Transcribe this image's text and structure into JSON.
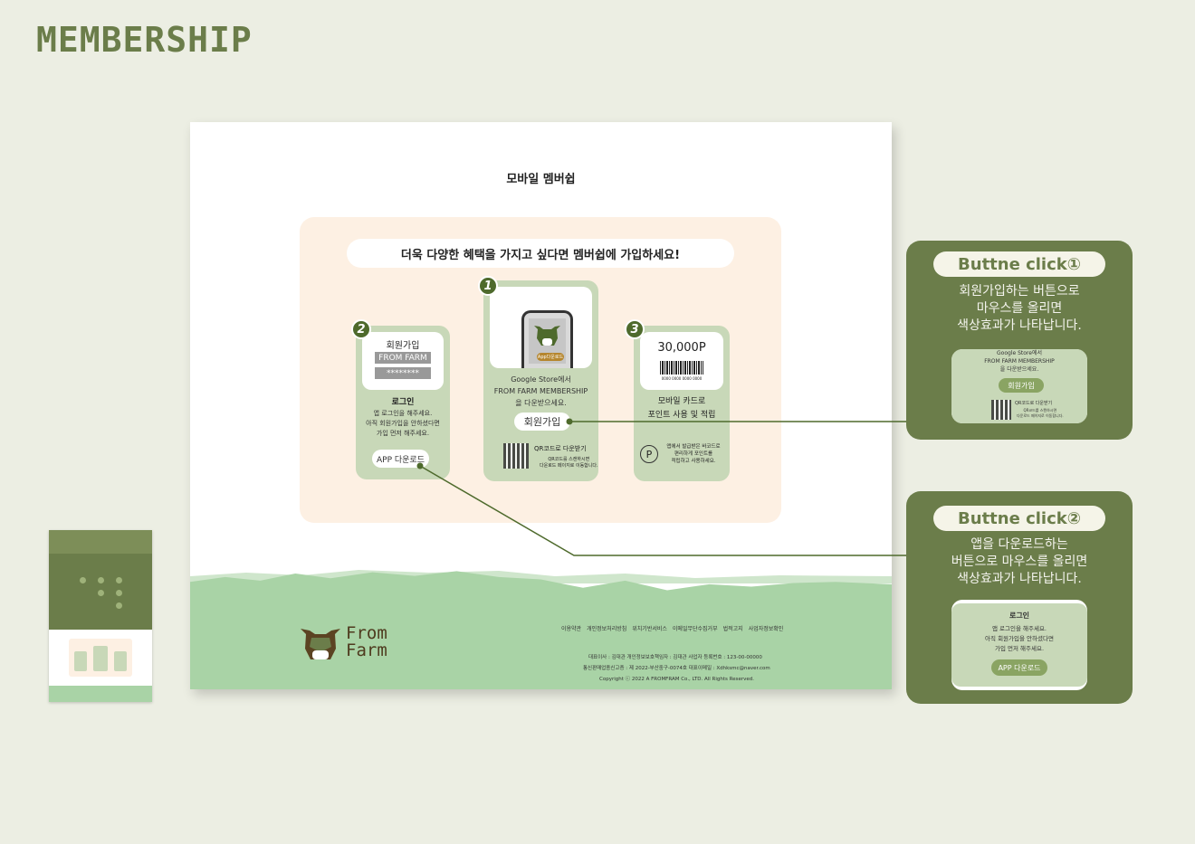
{
  "page_heading": "MEMBERSHIP",
  "canvas": {
    "title": "모바일 멤버쉽",
    "tagline": "더욱 다양한 혜택을 가지고 싶다면 멤버쉽에 가입하세요!",
    "card1": {
      "number": "1",
      "phone_button": "App다운로드",
      "desc_lines": [
        "Google Store에서",
        "FROM FARM MEMBERSHIP",
        "을 다운받으세요."
      ],
      "button": "회원가입",
      "qr_title": "QR코드로 다운받기",
      "qr_desc_lines": [
        "QR코드를 스캔하시면",
        "다운로드 페이지로 이동합니다."
      ]
    },
    "card2": {
      "number": "2",
      "form_title": "회원가입",
      "field_id": "FROM FARM",
      "field_pw": "********",
      "title": "로그인",
      "desc_lines": [
        "앱 로그인을 해주세요.",
        "아직 회원가입을 안하셨다면",
        "가입 먼저 해주세요."
      ],
      "button": "APP 다운로드"
    },
    "card3": {
      "number": "3",
      "points": "30,000P",
      "barcode_number": "0000 0000 0000 0000",
      "title_lines": [
        "모바일 카드로",
        "포인트 사용 및 적립"
      ],
      "point_icon": "P",
      "desc_lines": [
        "앱에서 발급받은 바코드로",
        "편리하게 포인트를",
        "적립하고 사용하세요."
      ]
    },
    "footer": {
      "logo_line1": "From",
      "logo_line2": "Farm",
      "links": [
        "이용약관",
        "개인정보처리방침",
        "위치기반서비스",
        "이메일무단수집거부",
        "법적고지",
        "사업자정보확인"
      ],
      "info_line1": "대표이사 : 김대관 개인정보보호책임자 : 김대관 사업자 등록번호 : 123-00-00000",
      "info_line2": "통신판매업종신고증 : 제 2022-부산중구-0074호 대표이메일 : Xdhksmc@naver.com",
      "copyright": "Copyright ⓒ 2022 A FROMFRAM Co., LTD. All Rights Reserved."
    }
  },
  "callout1": {
    "title": "Buttne click①",
    "desc_lines": [
      "회원가입하는 버튼으로",
      "마우스를 올리면",
      "색상효과가 나타납니다."
    ],
    "preview_lines": [
      "Google Store에서",
      "FROM FARM MEMBERSHIP",
      "을 다운받으세요."
    ],
    "preview_button": "회원가입",
    "preview_qr_title": "QR코드로 다운받기",
    "preview_qr_desc_lines": [
      "QR코드를 스캔하시면",
      "다운로드 페이지로 이동합니다."
    ]
  },
  "callout2": {
    "title": "Buttne click②",
    "desc_lines": [
      "앱을 다운로드하는",
      "버튼으로 마우스를 올리면",
      "색상효과가 나타납니다."
    ],
    "preview_title": "로그인",
    "preview_lines": [
      "앱 로그인을 해주세요.",
      "아직 회원가입을 안하셨다면",
      "가입 먼저 해주세요."
    ],
    "preview_button": "APP 다운로드"
  },
  "colors": {
    "brand_green": "#6b7d4a",
    "dark_green": "#4e6a2c",
    "card_green": "#c8d8b8",
    "peach": "#fdf0e3",
    "footer_green": "#a9d3a6",
    "background": "#eceee3"
  }
}
